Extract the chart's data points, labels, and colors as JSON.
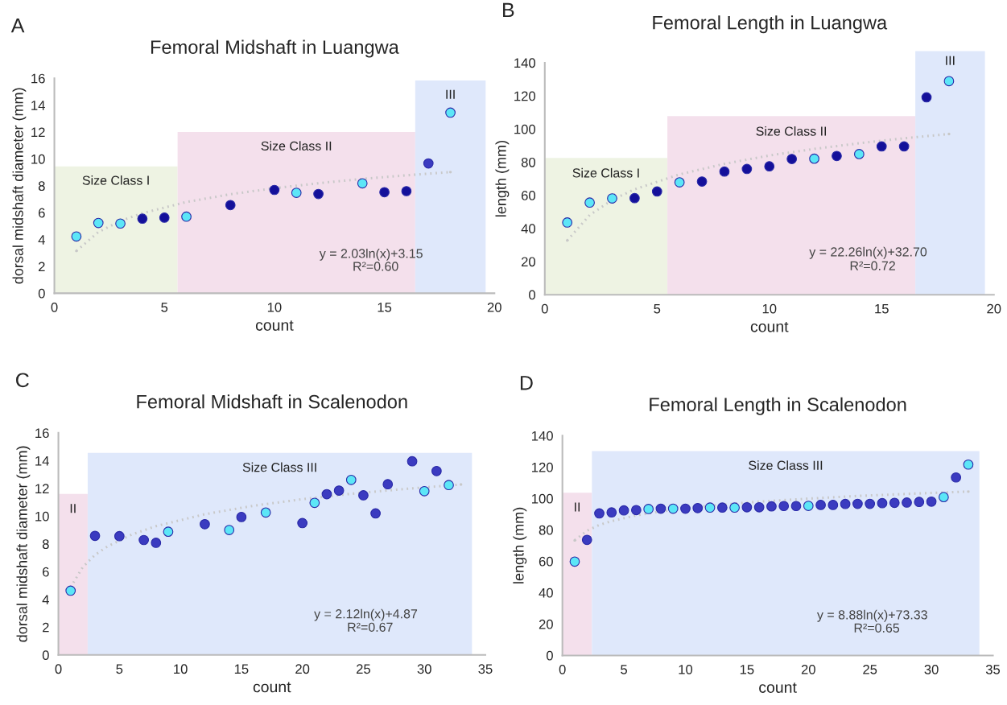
{
  "chart_data": [
    {
      "type": "scatter",
      "title": "Femoral Midshaft in Luangwa",
      "xlabel": "count",
      "ylabel": "dorsal midshaft diameter (mm)",
      "xlim": [
        0,
        20
      ],
      "ylim": [
        0,
        16
      ],
      "xticks": [
        0,
        5,
        10,
        15,
        20
      ],
      "yticks": [
        0,
        2,
        4,
        6,
        8,
        10,
        12,
        14,
        16
      ],
      "series": [
        {
          "marker": "circle",
          "x": [
            1,
            2,
            3,
            4,
            5,
            6,
            8,
            10,
            11,
            12,
            14,
            15,
            16,
            17,
            18
          ],
          "values": [
            4.23,
            5.23,
            5.19,
            5.55,
            5.63,
            5.7,
            6.56,
            7.69,
            7.48,
            7.39,
            8.18,
            7.52,
            7.6,
            9.66,
            13.44
          ],
          "colors": [
            "#5ce6f7",
            "#5ce6f7",
            "#5ce6f7",
            "#14109a",
            "#14109a",
            "#5ce6f7",
            "#14109a",
            "#14109a",
            "#5ce6f7",
            "#14109a",
            "#5ce6f7",
            "#14109a",
            "#14109a",
            "#3b3bc0",
            "#5ce6f7"
          ]
        },
        {
          "type": "line",
          "x": [
            1,
            2,
            3,
            4,
            6,
            8,
            10,
            12,
            14,
            16,
            18
          ],
          "values": [
            3.15,
            4.56,
            5.38,
            5.96,
            6.79,
            7.37,
            7.82,
            8.19,
            8.51,
            8.78,
            9.02
          ],
          "color": "#c8c8c8",
          "line_style": "dotted"
        }
      ],
      "bands": [
        {
          "axis": "x",
          "from": 0,
          "to": 5.6,
          "label": "Size Class I",
          "color": "#eef3e3"
        },
        {
          "axis": "x",
          "from": 5.6,
          "to": 16.4,
          "label": "Size Class II",
          "color": "#f4e0ec"
        },
        {
          "axis": "x",
          "from": 16.4,
          "to": 19.6,
          "label": "III",
          "color": "#dfe8fb"
        }
      ],
      "annotations": [
        "A",
        "y = 2.03ln(x)+3.15",
        "R²=0.60"
      ]
    },
    {
      "type": "scatter",
      "title": "Femoral Length in Luangwa",
      "xlabel": "count",
      "ylabel": "length (mm)",
      "xlim": [
        0,
        20
      ],
      "ylim": [
        0,
        140
      ],
      "xticks": [
        0,
        5,
        10,
        15,
        20
      ],
      "yticks": [
        0,
        20,
        40,
        60,
        80,
        100,
        120,
        140
      ],
      "series": [
        {
          "marker": "circle",
          "x": [
            1,
            2,
            3,
            4,
            5,
            6,
            7,
            8,
            9,
            10,
            11,
            12,
            13,
            14,
            15,
            16,
            17,
            18
          ],
          "values": [
            43.6,
            55.6,
            58.1,
            58.3,
            62.3,
            67.8,
            68.3,
            74.3,
            75.9,
            77.5,
            81.9,
            82.1,
            83.7,
            84.9,
            89.5,
            89.5,
            119.1,
            128.9
          ],
          "colors": [
            "#5ce6f7",
            "#5ce6f7",
            "#5ce6f7",
            "#14109a",
            "#14109a",
            "#5ce6f7",
            "#14109a",
            "#14109a",
            "#14109a",
            "#14109a",
            "#14109a",
            "#5ce6f7",
            "#14109a",
            "#5ce6f7",
            "#14109a",
            "#14109a",
            "#14109a",
            "#5ce6f7"
          ]
        },
        {
          "type": "line",
          "x": [
            1,
            2,
            3,
            4,
            6,
            8,
            10,
            12,
            14,
            16,
            18
          ],
          "values": [
            32.7,
            48.1,
            57.2,
            63.6,
            72.6,
            79.0,
            84.0,
            88.0,
            91.4,
            94.4,
            97.0
          ],
          "color": "#c8c8c8",
          "line_style": "dotted"
        }
      ],
      "bands": [
        {
          "axis": "x",
          "from": 0,
          "to": 5.46,
          "label": "Size Class I",
          "color": "#eef3e3"
        },
        {
          "axis": "x",
          "from": 5.46,
          "to": 16.5,
          "label": "Size Class II",
          "color": "#f4e0ec"
        },
        {
          "axis": "x",
          "from": 16.5,
          "to": 19.6,
          "label": "III",
          "color": "#dfe8fb"
        }
      ],
      "annotations": [
        "B",
        "y = 22.26ln(x)+32.70",
        "R²=0.72"
      ]
    },
    {
      "type": "scatter",
      "title": "Femoral Midshaft in Scalenodon",
      "xlabel": "count",
      "ylabel": "dorsal midshaft diameter (mm)",
      "xlim": [
        0,
        35
      ],
      "ylim": [
        0,
        16
      ],
      "xticks": [
        0,
        5,
        10,
        15,
        20,
        25,
        30,
        35
      ],
      "yticks": [
        0,
        2,
        4,
        6,
        8,
        10,
        12,
        14,
        16
      ],
      "series": [
        {
          "marker": "circle",
          "x": [
            1,
            3,
            5,
            7,
            8,
            9,
            12,
            14,
            15,
            17,
            20,
            21,
            22,
            23,
            24,
            25,
            26,
            27,
            29,
            30,
            31,
            32
          ],
          "values": [
            4.63,
            8.58,
            8.56,
            8.28,
            8.08,
            8.88,
            9.42,
            9.0,
            9.94,
            10.26,
            9.5,
            10.96,
            11.58,
            11.84,
            12.61,
            11.5,
            10.2,
            12.3,
            13.95,
            11.8,
            13.25,
            12.24
          ],
          "colors": [
            "#5ce6f7",
            "#3b3bc0",
            "#3b3bc0",
            "#3b3bc0",
            "#3b3bc0",
            "#5ce6f7",
            "#3b3bc0",
            "#5ce6f7",
            "#3b3bc0",
            "#5ce6f7",
            "#3b3bc0",
            "#5ce6f7",
            "#3b3bc0",
            "#3b3bc0",
            "#5ce6f7",
            "#3b3bc0",
            "#3b3bc0",
            "#3b3bc0",
            "#3b3bc0",
            "#5ce6f7",
            "#3b3bc0",
            "#5ce6f7"
          ]
        },
        {
          "type": "line",
          "x": [
            1,
            2,
            3,
            4,
            6,
            8,
            12,
            16,
            20,
            24,
            28,
            33
          ],
          "values": [
            4.87,
            6.34,
            7.2,
            7.81,
            8.67,
            9.28,
            10.14,
            10.75,
            11.22,
            11.61,
            11.93,
            12.28
          ],
          "color": "#c8c8c8",
          "line_style": "dotted"
        }
      ],
      "bands": [
        {
          "axis": "x",
          "from": 0,
          "to": 2.4,
          "label": "II",
          "color": "#f4e0ec"
        },
        {
          "axis": "x",
          "from": 2.4,
          "to": 33.9,
          "label": "Size Class III",
          "color": "#dfe8fb"
        }
      ],
      "annotations": [
        "C",
        "y = 2.12ln(x)+4.87",
        "R²=0.67"
      ]
    },
    {
      "type": "scatter",
      "title": "Femoral Length in Scalenodon",
      "xlabel": "count",
      "ylabel": "length (mm)",
      "xlim": [
        0,
        35
      ],
      "ylim": [
        0,
        140
      ],
      "xticks": [
        0,
        5,
        10,
        15,
        20,
        25,
        30,
        35
      ],
      "yticks": [
        0,
        20,
        40,
        60,
        80,
        100,
        120,
        140
      ],
      "series": [
        {
          "marker": "circle",
          "x": [
            1,
            2,
            3,
            4,
            5,
            6,
            7,
            8,
            9,
            10,
            11,
            12,
            13,
            14,
            15,
            16,
            17,
            18,
            19,
            20,
            21,
            22,
            23,
            24,
            25,
            26,
            27,
            28,
            29,
            30,
            31,
            32,
            33
          ],
          "values": [
            59.8,
            73.6,
            90.5,
            91.1,
            92.4,
            92.6,
            93.3,
            93.5,
            93.5,
            93.5,
            93.9,
            94.2,
            94.2,
            94.2,
            94.4,
            94.4,
            95.0,
            95.2,
            95.2,
            95.3,
            95.9,
            95.9,
            96.5,
            96.6,
            96.6,
            97.0,
            97.2,
            97.4,
            97.8,
            98.0,
            100.9,
            113.4,
            121.6
          ],
          "colors": [
            "#5ce6f7",
            "#3b3bc0",
            "#3b3bc0",
            "#3b3bc0",
            "#3b3bc0",
            "#3b3bc0",
            "#5ce6f7",
            "#3b3bc0",
            "#5ce6f7",
            "#3b3bc0",
            "#3b3bc0",
            "#5ce6f7",
            "#3b3bc0",
            "#5ce6f7",
            "#3b3bc0",
            "#3b3bc0",
            "#3b3bc0",
            "#3b3bc0",
            "#3b3bc0",
            "#5ce6f7",
            "#3b3bc0",
            "#3b3bc0",
            "#3b3bc0",
            "#3b3bc0",
            "#3b3bc0",
            "#3b3bc0",
            "#3b3bc0",
            "#3b3bc0",
            "#3b3bc0",
            "#3b3bc0",
            "#5ce6f7",
            "#3b3bc0",
            "#5ce6f7"
          ]
        },
        {
          "type": "line",
          "x": [
            1,
            2,
            3,
            4,
            6,
            8,
            12,
            16,
            20,
            24,
            28,
            33
          ],
          "values": [
            73.3,
            79.5,
            83.1,
            85.6,
            89.2,
            91.8,
            95.4,
            98.0,
            99.9,
            101.6,
            102.9,
            104.4
          ],
          "color": "#c8c8c8",
          "line_style": "dotted"
        }
      ],
      "bands": [
        {
          "axis": "x",
          "from": 0,
          "to": 2.4,
          "label": "II",
          "color": "#f4e0ec"
        },
        {
          "axis": "x",
          "from": 2.4,
          "to": 33.9,
          "label": "Size Class III",
          "color": "#dfe8fb"
        }
      ],
      "annotations": [
        "D",
        "y = 8.88ln(x)+73.33",
        "R²=0.65"
      ]
    }
  ]
}
